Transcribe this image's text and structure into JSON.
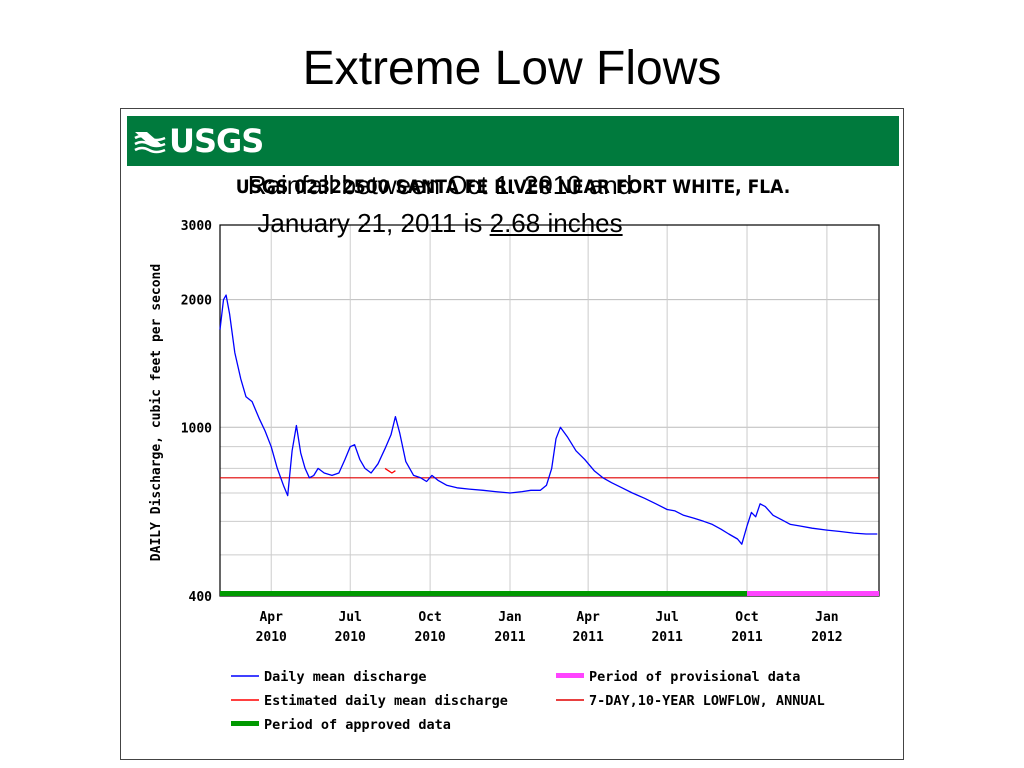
{
  "slide": {
    "title": "Extreme Low Flows"
  },
  "banner": {
    "logo_text": "USGS",
    "color": "#007a3d"
  },
  "annotation": {
    "line1": "Rainfall between Oct 1. 2010 and",
    "line2_prefix": "January 21, 2011 is ",
    "line2_highlight": "2.68 inches"
  },
  "chart_data": {
    "type": "line",
    "title": "USGS 02322500 SANTA FE RIVER NEAR FORT WHITE, FLA.",
    "xlabel": "",
    "ylabel": "DAILY Discharge, cubic feet per second",
    "y_scale": "log",
    "ylim": [
      400,
      3000
    ],
    "y_ticks": [
      {
        "value": 400,
        "label": "400"
      },
      {
        "value": 1000,
        "label": "1000"
      },
      {
        "value": 2000,
        "label": "2000"
      },
      {
        "value": 3000,
        "label": "3000"
      }
    ],
    "x_range": [
      "2010-02-01",
      "2012-03-01"
    ],
    "x_ticks": [
      {
        "date": "2010-04-01",
        "line1": "Apr",
        "line2": "2010"
      },
      {
        "date": "2010-07-01",
        "line1": "Jul",
        "line2": "2010"
      },
      {
        "date": "2010-10-01",
        "line1": "Oct",
        "line2": "2010"
      },
      {
        "date": "2011-01-01",
        "line1": "Jan",
        "line2": "2011"
      },
      {
        "date": "2011-04-01",
        "line1": "Apr",
        "line2": "2011"
      },
      {
        "date": "2011-07-01",
        "line1": "Jul",
        "line2": "2011"
      },
      {
        "date": "2011-10-01",
        "line1": "Oct",
        "line2": "2011"
      },
      {
        "date": "2012-01-01",
        "line1": "Jan",
        "line2": "2012"
      }
    ],
    "grid": true,
    "colors": {
      "discharge": "#0000ff",
      "estimated": "#ff0000",
      "lowflow": "#e00000",
      "approved": "#009900",
      "provisional": "#ff44ff"
    },
    "series": [
      {
        "name": "Daily mean discharge",
        "points": [
          [
            "2010-02-01",
            1700
          ],
          [
            "2010-02-05",
            2000
          ],
          [
            "2010-02-08",
            2050
          ],
          [
            "2010-02-12",
            1850
          ],
          [
            "2010-02-18",
            1500
          ],
          [
            "2010-02-25",
            1300
          ],
          [
            "2010-03-03",
            1180
          ],
          [
            "2010-03-10",
            1150
          ],
          [
            "2010-03-18",
            1050
          ],
          [
            "2010-03-25",
            980
          ],
          [
            "2010-04-01",
            900
          ],
          [
            "2010-04-08",
            800
          ],
          [
            "2010-04-15",
            730
          ],
          [
            "2010-04-20",
            690
          ],
          [
            "2010-04-25",
            880
          ],
          [
            "2010-04-30",
            1010
          ],
          [
            "2010-05-05",
            870
          ],
          [
            "2010-05-10",
            800
          ],
          [
            "2010-05-15",
            760
          ],
          [
            "2010-05-20",
            770
          ],
          [
            "2010-05-25",
            800
          ],
          [
            "2010-06-01",
            780
          ],
          [
            "2010-06-10",
            770
          ],
          [
            "2010-06-18",
            780
          ],
          [
            "2010-06-25",
            840
          ],
          [
            "2010-07-01",
            900
          ],
          [
            "2010-07-06",
            910
          ],
          [
            "2010-07-12",
            840
          ],
          [
            "2010-07-18",
            800
          ],
          [
            "2010-07-25",
            780
          ],
          [
            "2010-08-02",
            820
          ],
          [
            "2010-08-10",
            890
          ],
          [
            "2010-08-17",
            960
          ],
          [
            "2010-08-22",
            1060
          ],
          [
            "2010-08-27",
            970
          ],
          [
            "2010-09-03",
            830
          ],
          [
            "2010-09-12",
            770
          ],
          [
            "2010-09-20",
            760
          ],
          [
            "2010-09-27",
            745
          ],
          [
            "2010-10-03",
            770
          ],
          [
            "2010-10-10",
            750
          ],
          [
            "2010-10-20",
            730
          ],
          [
            "2010-11-01",
            720
          ],
          [
            "2010-11-15",
            715
          ],
          [
            "2010-12-01",
            710
          ],
          [
            "2010-12-15",
            705
          ],
          [
            "2011-01-01",
            700
          ],
          [
            "2011-01-15",
            705
          ],
          [
            "2011-01-25",
            710
          ],
          [
            "2011-02-05",
            710
          ],
          [
            "2011-02-12",
            730
          ],
          [
            "2011-02-18",
            800
          ],
          [
            "2011-02-23",
            940
          ],
          [
            "2011-02-28",
            1000
          ],
          [
            "2011-03-08",
            950
          ],
          [
            "2011-03-18",
            880
          ],
          [
            "2011-03-28",
            840
          ],
          [
            "2011-04-08",
            790
          ],
          [
            "2011-04-18",
            760
          ],
          [
            "2011-04-28",
            740
          ],
          [
            "2011-05-10",
            720
          ],
          [
            "2011-05-22",
            700
          ],
          [
            "2011-06-05",
            680
          ],
          [
            "2011-06-18",
            660
          ],
          [
            "2011-07-01",
            640
          ],
          [
            "2011-07-10",
            635
          ],
          [
            "2011-07-20",
            620
          ],
          [
            "2011-08-01",
            610
          ],
          [
            "2011-08-12",
            600
          ],
          [
            "2011-08-22",
            590
          ],
          [
            "2011-09-01",
            575
          ],
          [
            "2011-09-10",
            560
          ],
          [
            "2011-09-20",
            545
          ],
          [
            "2011-09-25",
            530
          ],
          [
            "2011-10-01",
            585
          ],
          [
            "2011-10-06",
            630
          ],
          [
            "2011-10-11",
            615
          ],
          [
            "2011-10-16",
            660
          ],
          [
            "2011-10-22",
            650
          ],
          [
            "2011-10-31",
            620
          ],
          [
            "2011-11-10",
            605
          ],
          [
            "2011-11-20",
            590
          ],
          [
            "2011-12-01",
            585
          ],
          [
            "2011-12-15",
            578
          ],
          [
            "2012-01-01",
            572
          ],
          [
            "2012-01-15",
            568
          ],
          [
            "2012-02-01",
            563
          ],
          [
            "2012-02-15",
            560
          ],
          [
            "2012-02-28",
            560
          ]
        ]
      },
      {
        "name": "Estimated daily mean discharge",
        "points": [
          [
            "2010-08-10",
            800
          ],
          [
            "2010-08-14",
            790
          ],
          [
            "2010-08-18",
            780
          ],
          [
            "2010-08-22",
            790
          ]
        ]
      }
    ],
    "lowflow_value": 760,
    "periods": [
      {
        "name": "Period of approved data",
        "start": "2010-02-01",
        "end": "2011-10-01"
      },
      {
        "name": "Period of provisional data",
        "start": "2011-10-01",
        "end": "2012-03-01"
      }
    ],
    "legend": {
      "placement": "bottom",
      "items": [
        {
          "label": "Daily mean discharge",
          "style": "line",
          "color": "#0000ff"
        },
        {
          "label": "Period of provisional data",
          "style": "bar",
          "color": "#ff44ff"
        },
        {
          "label": "Estimated daily mean discharge",
          "style": "line",
          "color": "#ff0000"
        },
        {
          "label": "7-DAY,10-YEAR LOWFLOW, ANNUAL",
          "style": "line",
          "color": "#e00000"
        },
        {
          "label": "Period of approved data",
          "style": "bar",
          "color": "#009900"
        }
      ]
    }
  }
}
